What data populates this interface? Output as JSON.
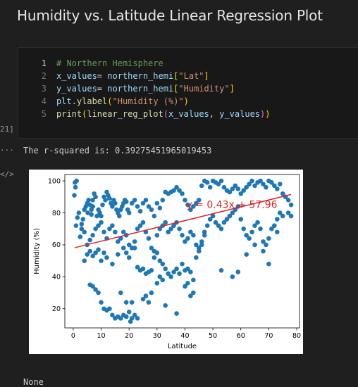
{
  "notebook": {
    "heading": "Humidity vs. Latitude Linear Regression Plot",
    "exec_count": "21]",
    "output_gutter": "...",
    "output_tag": "</>",
    "code_lines": [
      {
        "num": "1",
        "tokens": [
          {
            "t": "# Northern Hemisphere",
            "c": "c-com"
          }
        ]
      },
      {
        "num": "2",
        "tokens": [
          {
            "t": "x_values",
            "c": "c-var"
          },
          {
            "t": "= ",
            "c": "c-txt"
          },
          {
            "t": "northern_hemi",
            "c": "c-var"
          },
          {
            "t": "[",
            "c": "c-br1"
          },
          {
            "t": "\"Lat\"",
            "c": "c-str"
          },
          {
            "t": "]",
            "c": "c-br1"
          }
        ]
      },
      {
        "num": "3",
        "tokens": [
          {
            "t": "y_values",
            "c": "c-var"
          },
          {
            "t": "= ",
            "c": "c-txt"
          },
          {
            "t": "northern_hemi",
            "c": "c-var"
          },
          {
            "t": "[",
            "c": "c-br1"
          },
          {
            "t": "\"Humidity\"",
            "c": "c-str"
          },
          {
            "t": "]",
            "c": "c-br1"
          }
        ]
      },
      {
        "num": "4",
        "tokens": [
          {
            "t": "plt",
            "c": "c-var"
          },
          {
            "t": ".",
            "c": "c-txt"
          },
          {
            "t": "ylabel",
            "c": "c-fn"
          },
          {
            "t": "(",
            "c": "c-br1"
          },
          {
            "t": "\"Humidity (%)\"",
            "c": "c-str"
          },
          {
            "t": ")",
            "c": "c-br1"
          }
        ]
      },
      {
        "num": "5",
        "tokens": [
          {
            "t": "print",
            "c": "c-fn"
          },
          {
            "t": "(",
            "c": "c-br1"
          },
          {
            "t": "linear_reg_plot",
            "c": "c-fn"
          },
          {
            "t": "(",
            "c": "c-br2"
          },
          {
            "t": "x_values",
            "c": "c-var"
          },
          {
            "t": ", ",
            "c": "c-txt"
          },
          {
            "t": "y_values",
            "c": "c-var"
          },
          {
            "t": ")",
            "c": "c-br2"
          },
          {
            "t": ")",
            "c": "c-br1"
          }
        ]
      }
    ],
    "output_text": "The r-squared is: 0.39275451965019453",
    "bottom_text": "None"
  },
  "chart_data": {
    "type": "scatter",
    "title": "",
    "xlabel": "Latitude",
    "ylabel": "Humidity (%)",
    "xlim": [
      -3,
      81
    ],
    "ylim": [
      8,
      104
    ],
    "xticks": [
      0,
      10,
      20,
      30,
      40,
      50,
      60,
      70,
      80
    ],
    "yticks": [
      20,
      40,
      60,
      80,
      100
    ],
    "grid": false,
    "point_color": "#1f77b4",
    "line_color": "#d62728",
    "annotation": {
      "text": "y = 0.43x + 57.96",
      "x": 40.5,
      "y": 83,
      "color": "#d62728"
    },
    "regression": {
      "slope": 0.43,
      "intercept": 57.96,
      "x_range": [
        0.5,
        78
      ]
    },
    "points": [
      [
        0.6,
        99
      ],
      [
        1.2,
        100
      ],
      [
        0.8,
        96
      ],
      [
        0.4,
        91
      ],
      [
        2,
        80
      ],
      [
        1.5,
        77
      ],
      [
        1,
        72
      ],
      [
        3,
        73
      ],
      [
        2.5,
        65
      ],
      [
        3.5,
        76
      ],
      [
        4,
        82
      ],
      [
        4.5,
        84
      ],
      [
        5,
        86
      ],
      [
        5.5,
        88
      ],
      [
        6,
        85
      ],
      [
        5.2,
        80
      ],
      [
        6.5,
        82
      ],
      [
        7,
        88
      ],
      [
        7.5,
        92
      ],
      [
        8,
        90
      ],
      [
        7,
        84
      ],
      [
        6.5,
        79
      ],
      [
        8.5,
        78
      ],
      [
        9,
        82
      ],
      [
        9.5,
        80
      ],
      [
        10,
        78
      ],
      [
        10.5,
        85
      ],
      [
        11,
        90
      ],
      [
        11.5,
        88
      ],
      [
        12,
        93
      ],
      [
        12.5,
        91
      ],
      [
        13,
        89
      ],
      [
        13.5,
        86
      ],
      [
        14,
        84
      ],
      [
        14.5,
        88
      ],
      [
        15,
        86
      ],
      [
        15.5,
        82
      ],
      [
        16,
        80
      ],
      [
        16.5,
        78
      ],
      [
        17,
        82
      ],
      [
        17.5,
        84
      ],
      [
        18,
        86
      ],
      [
        18.5,
        88
      ],
      [
        19,
        87
      ],
      [
        19.5,
        82
      ],
      [
        20,
        80
      ],
      [
        21,
        86
      ],
      [
        22,
        88
      ],
      [
        23,
        84
      ],
      [
        24,
        81
      ],
      [
        25,
        86
      ],
      [
        26,
        88
      ],
      [
        27,
        84
      ],
      [
        28,
        82
      ],
      [
        29,
        78
      ],
      [
        30,
        86
      ],
      [
        31,
        83
      ],
      [
        32,
        88
      ],
      [
        33,
        93
      ],
      [
        34,
        92
      ],
      [
        35,
        93
      ],
      [
        36,
        94
      ],
      [
        37,
        96
      ],
      [
        38,
        94
      ],
      [
        39,
        92
      ],
      [
        40,
        88
      ],
      [
        41,
        85
      ],
      [
        42,
        82
      ],
      [
        43,
        84
      ],
      [
        44,
        86
      ],
      [
        45,
        88
      ],
      [
        46,
        97
      ],
      [
        47,
        100
      ],
      [
        48,
        99
      ],
      [
        49,
        96
      ],
      [
        50,
        100
      ],
      [
        51,
        99
      ],
      [
        52,
        98
      ],
      [
        53,
        100
      ],
      [
        54,
        96
      ],
      [
        55,
        94
      ],
      [
        56,
        93
      ],
      [
        57,
        95
      ],
      [
        58,
        97
      ],
      [
        59,
        95
      ],
      [
        60,
        92
      ],
      [
        61,
        94
      ],
      [
        62,
        96
      ],
      [
        63,
        98
      ],
      [
        64,
        100
      ],
      [
        65,
        97
      ],
      [
        66,
        99
      ],
      [
        67,
        100
      ],
      [
        68,
        98
      ],
      [
        69,
        96
      ],
      [
        70,
        100
      ],
      [
        71,
        99
      ],
      [
        72,
        97
      ],
      [
        73,
        95
      ],
      [
        74,
        98
      ],
      [
        75,
        92
      ],
      [
        76,
        90
      ],
      [
        77,
        88
      ],
      [
        78,
        85
      ],
      [
        77,
        80
      ],
      [
        78,
        78
      ],
      [
        3,
        70
      ],
      [
        4,
        68
      ],
      [
        5,
        60
      ],
      [
        6,
        63
      ],
      [
        7,
        66
      ],
      [
        8,
        70
      ],
      [
        9,
        72
      ],
      [
        10,
        74
      ],
      [
        11,
        68
      ],
      [
        12,
        64
      ],
      [
        13,
        70
      ],
      [
        14,
        72
      ],
      [
        15,
        68
      ],
      [
        16,
        62
      ],
      [
        17,
        64
      ],
      [
        18,
        68
      ],
      [
        19,
        66
      ],
      [
        20,
        60
      ],
      [
        21,
        58
      ],
      [
        22,
        62
      ],
      [
        23,
        70
      ],
      [
        24,
        72
      ],
      [
        25,
        74
      ],
      [
        26,
        68
      ],
      [
        27,
        64
      ],
      [
        28,
        58
      ],
      [
        29,
        56
      ],
      [
        30,
        66
      ],
      [
        31,
        70
      ],
      [
        32,
        72
      ],
      [
        33,
        74
      ],
      [
        34,
        68
      ],
      [
        35,
        70
      ],
      [
        36,
        72
      ],
      [
        37,
        74
      ],
      [
        38,
        70
      ],
      [
        39,
        66
      ],
      [
        40,
        62
      ],
      [
        41,
        64
      ],
      [
        42,
        68
      ],
      [
        43,
        66
      ],
      [
        44,
        60
      ],
      [
        45,
        58
      ],
      [
        46,
        62
      ],
      [
        47,
        68
      ],
      [
        48,
        72
      ],
      [
        49,
        76
      ],
      [
        50,
        78
      ],
      [
        51,
        74
      ],
      [
        52,
        72
      ],
      [
        53,
        70
      ],
      [
        54,
        74
      ],
      [
        55,
        76
      ],
      [
        56,
        78
      ],
      [
        57,
        80
      ],
      [
        58,
        82
      ],
      [
        59,
        84
      ],
      [
        60,
        76
      ],
      [
        61,
        70
      ],
      [
        62,
        66
      ],
      [
        63,
        64
      ],
      [
        64,
        68
      ],
      [
        65,
        72
      ],
      [
        66,
        74
      ],
      [
        67,
        70
      ],
      [
        68,
        62
      ],
      [
        69,
        60
      ],
      [
        70,
        64
      ],
      [
        71,
        70
      ],
      [
        72,
        72
      ],
      [
        73,
        76
      ],
      [
        74,
        80
      ],
      [
        75,
        78
      ],
      [
        4,
        50
      ],
      [
        5,
        54
      ],
      [
        6,
        56
      ],
      [
        7,
        53
      ],
      [
        8,
        55
      ],
      [
        9,
        57
      ],
      [
        10,
        50
      ],
      [
        11,
        55
      ],
      [
        12,
        52
      ],
      [
        14,
        48
      ],
      [
        16,
        54
      ],
      [
        18,
        58
      ],
      [
        19,
        55
      ],
      [
        20,
        52
      ],
      [
        22,
        58
      ],
      [
        23,
        46
      ],
      [
        24,
        44
      ],
      [
        25,
        45
      ],
      [
        26,
        42
      ],
      [
        27,
        43
      ],
      [
        28,
        44
      ],
      [
        29,
        52
      ],
      [
        30,
        55
      ],
      [
        31,
        50
      ],
      [
        32,
        48
      ],
      [
        33,
        45
      ],
      [
        34,
        42
      ],
      [
        35,
        40
      ],
      [
        36,
        43
      ],
      [
        37,
        45
      ],
      [
        38,
        42
      ],
      [
        39,
        48
      ],
      [
        40,
        44
      ],
      [
        41,
        45
      ],
      [
        42,
        43
      ],
      [
        43,
        38
      ],
      [
        44,
        52
      ],
      [
        45,
        56
      ],
      [
        46,
        60
      ],
      [
        47,
        66
      ],
      [
        53,
        44
      ],
      [
        57,
        40
      ],
      [
        59,
        43
      ],
      [
        62,
        54
      ],
      [
        65,
        60
      ],
      [
        68,
        56
      ],
      [
        70,
        48
      ],
      [
        73,
        68
      ],
      [
        6,
        35
      ],
      [
        7,
        34
      ],
      [
        8,
        32
      ],
      [
        9,
        30
      ],
      [
        10,
        24
      ],
      [
        11,
        20
      ],
      [
        12,
        19
      ],
      [
        13,
        20
      ],
      [
        14,
        16
      ],
      [
        15,
        14
      ],
      [
        16,
        15
      ],
      [
        17,
        14
      ],
      [
        18,
        16
      ],
      [
        19,
        15
      ],
      [
        20,
        18
      ],
      [
        20.5,
        12
      ],
      [
        21,
        14
      ],
      [
        22,
        16
      ],
      [
        23,
        14
      ],
      [
        19,
        24
      ],
      [
        17,
        30
      ],
      [
        21,
        24
      ],
      [
        25,
        26
      ],
      [
        26,
        28
      ],
      [
        27,
        24
      ],
      [
        28,
        30
      ],
      [
        33,
        22
      ],
      [
        37,
        17
      ],
      [
        42,
        28
      ],
      [
        43,
        30
      ],
      [
        40,
        34
      ],
      [
        41,
        36
      ],
      [
        30,
        36
      ],
      [
        31,
        40
      ],
      [
        32,
        38
      ]
    ]
  }
}
